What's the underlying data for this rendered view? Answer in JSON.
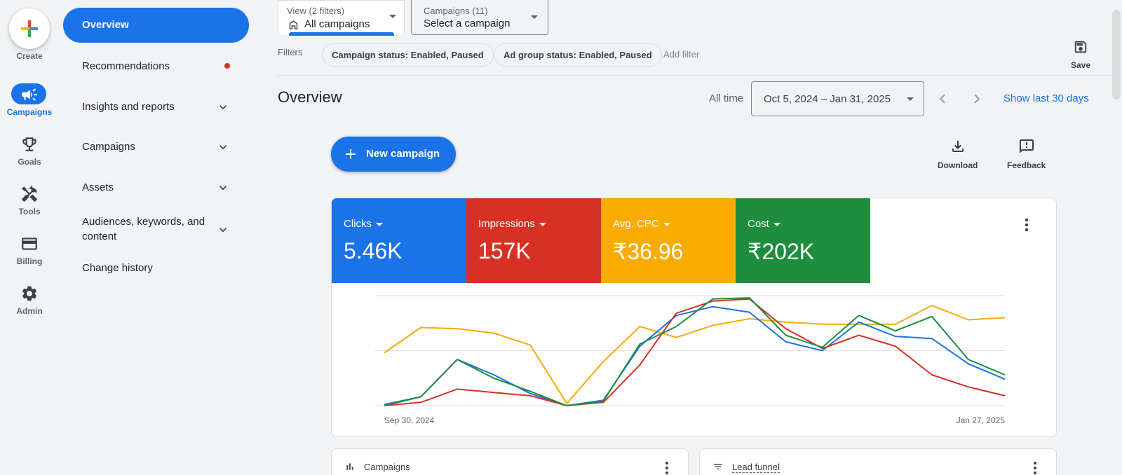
{
  "rail": {
    "create_label": "Create",
    "items": [
      {
        "label": "Campaigns",
        "icon": "megaphone-icon",
        "active": true
      },
      {
        "label": "Goals",
        "icon": "trophy-icon"
      },
      {
        "label": "Tools",
        "icon": "tools-icon"
      },
      {
        "label": "Billing",
        "icon": "credit-card-icon"
      },
      {
        "label": "Admin",
        "icon": "gear-icon"
      }
    ]
  },
  "nav": {
    "items": [
      {
        "label": "Overview",
        "active": true
      },
      {
        "label": "Recommendations",
        "badge": true
      },
      {
        "label": "Insights and reports",
        "expandable": true
      },
      {
        "label": "Campaigns",
        "expandable": true
      },
      {
        "label": "Assets",
        "expandable": true
      },
      {
        "label": "Audiences, keywords, and",
        "label2": "content",
        "expandable": true
      },
      {
        "label": "Change history"
      }
    ]
  },
  "topbar": {
    "view_small": "View (2 filters)",
    "view_value": "All campaigns",
    "campaigns_small": "Campaigns (11)",
    "campaigns_value": "Select a campaign",
    "filters_label": "Filters",
    "chips": [
      "Campaign status: Enabled, Paused",
      "Ad group status: Enabled, Paused"
    ],
    "add_filter": "Add filter",
    "save_label": "Save"
  },
  "overview": {
    "title": "Overview",
    "all_time": "All time",
    "date_range": "Oct 5, 2024 – Jan 31, 2025",
    "show_last": "Show last 30 days",
    "new_campaign": "New campaign",
    "download": "Download",
    "feedback": "Feedback"
  },
  "metrics": [
    {
      "name": "Clicks",
      "value": "5.46K",
      "color": "#1a73e8"
    },
    {
      "name": "Impressions",
      "value": "157K",
      "color": "#d93025"
    },
    {
      "name": "Avg. CPC",
      "value": "₹36.96",
      "color": "#f9ab00"
    },
    {
      "name": "Cost",
      "value": "₹202K",
      "color": "#1e8e3e"
    }
  ],
  "chart_data": {
    "type": "line",
    "x_start_label": "Sep 30, 2024",
    "x_end_label": "Jan 27, 2025",
    "ylim": [
      0,
      100
    ],
    "series": [
      {
        "color": "#f9ab00",
        "values": [
          48,
          71,
          70,
          66,
          55,
          2,
          40,
          72,
          62,
          73,
          79,
          76,
          74,
          74,
          74,
          91,
          78,
          80
        ]
      },
      {
        "color": "#1a73e8",
        "values": [
          1,
          8,
          42,
          28,
          11,
          0,
          5,
          54,
          82,
          90,
          85,
          58,
          50,
          76,
          63,
          61,
          38,
          24
        ]
      },
      {
        "color": "#d93025",
        "values": [
          0,
          3,
          15,
          12,
          9,
          0,
          3,
          37,
          84,
          95,
          97,
          70,
          52,
          64,
          54,
          28,
          17,
          9
        ]
      },
      {
        "color": "#1e8e3e",
        "values": [
          0,
          8,
          42,
          25,
          13,
          0,
          4,
          56,
          72,
          97,
          98,
          64,
          53,
          82,
          68,
          81,
          42,
          28
        ]
      }
    ]
  },
  "bottom": {
    "campaigns": "Campaigns",
    "lead_funnel": "Lead funnel"
  }
}
